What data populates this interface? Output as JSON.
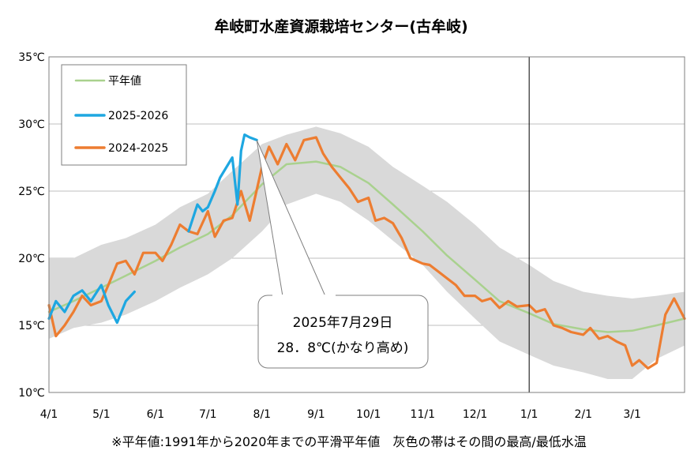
{
  "chart_data": {
    "type": "line",
    "title": "牟岐町水産資源栽培センター(古牟岐)",
    "footnote": "※平年値:1991年から2020年までの平滑平年値　灰色の帯はその間の最高/最低水温",
    "xlabel": "",
    "ylabel": "",
    "x_ticks": [
      "4/1",
      "5/1",
      "6/1",
      "7/1",
      "8/1",
      "9/1",
      "10/1",
      "11/1",
      "12/1",
      "1/1",
      "2/1",
      "3/1"
    ],
    "y_ticks": [
      "10℃",
      "15℃",
      "20℃",
      "25℃",
      "30℃",
      "35℃"
    ],
    "ylim": [
      10,
      35
    ],
    "grid": "horizontal",
    "legend": [
      "平年値",
      "2025-2026",
      "2024-2025"
    ],
    "legend_position": "top-left",
    "colors": {
      "normal": "#a9d18e",
      "current": "#1ea7e1",
      "previous": "#ed7d31",
      "band": "#d9d9d9",
      "frame": "#7f7f7f"
    },
    "annotation": {
      "line1": "2025年7月29日",
      "line2": "28．8℃(かなり高め)"
    },
    "series": [
      {
        "name": "平年値",
        "x": [
          "4/1",
          "4/15",
          "5/1",
          "5/15",
          "6/1",
          "6/15",
          "7/1",
          "7/15",
          "8/1",
          "8/15",
          "9/1",
          "9/15",
          "10/1",
          "10/15",
          "11/1",
          "11/15",
          "12/1",
          "12/15",
          "1/1",
          "1/15",
          "2/1",
          "2/15",
          "3/1",
          "3/15",
          "3/31"
        ],
        "values": [
          16.0,
          16.8,
          17.8,
          18.7,
          19.8,
          20.8,
          21.8,
          23.2,
          25.5,
          27.0,
          27.2,
          26.8,
          25.6,
          24.0,
          22.0,
          20.2,
          18.4,
          16.8,
          15.9,
          15.1,
          14.7,
          14.5,
          14.6,
          15.0,
          15.5
        ]
      },
      {
        "name": "2025-2026",
        "x": [
          "4/1",
          "4/5",
          "4/10",
          "4/15",
          "4/20",
          "4/25",
          "5/1",
          "5/5",
          "5/10",
          "5/15",
          "5/20",
          "6/20",
          "6/25",
          "6/28",
          "7/1",
          "7/5",
          "7/8",
          "7/15",
          "7/18",
          "7/20",
          "7/22",
          "7/25",
          "7/29"
        ],
        "values": [
          15.5,
          16.8,
          16.0,
          17.2,
          17.6,
          16.8,
          18.0,
          16.5,
          15.2,
          16.8,
          17.5,
          22.0,
          24.0,
          23.5,
          23.8,
          25.0,
          26.0,
          27.5,
          24.0,
          28.0,
          29.2,
          29.0,
          28.8
        ]
      },
      {
        "name": "2024-2025",
        "x": [
          "4/1",
          "4/5",
          "4/10",
          "4/15",
          "4/20",
          "4/25",
          "5/1",
          "5/5",
          "5/10",
          "5/15",
          "5/20",
          "5/25",
          "6/1",
          "6/5",
          "6/10",
          "6/15",
          "6/20",
          "6/25",
          "7/1",
          "7/5",
          "7/10",
          "7/15",
          "7/20",
          "7/25",
          "8/1",
          "8/5",
          "8/10",
          "8/15",
          "8/20",
          "8/25",
          "9/1",
          "9/5",
          "9/10",
          "9/15",
          "9/20",
          "9/25",
          "10/1",
          "10/5",
          "10/10",
          "10/15",
          "10/20",
          "10/25",
          "11/1",
          "11/5",
          "11/10",
          "11/15",
          "11/20",
          "11/25",
          "12/1",
          "12/5",
          "12/10",
          "12/15",
          "12/20",
          "12/25",
          "1/1",
          "1/5",
          "1/10",
          "1/15",
          "1/20",
          "1/25",
          "2/1",
          "2/5",
          "2/10",
          "2/15",
          "2/20",
          "2/25",
          "3/1",
          "3/5",
          "3/10",
          "3/15",
          "3/20",
          "3/25",
          "3/31"
        ],
        "values": [
          16.5,
          14.2,
          15.0,
          16.0,
          17.2,
          16.5,
          16.8,
          18.0,
          19.6,
          19.8,
          18.8,
          20.4,
          20.4,
          19.8,
          21.0,
          22.5,
          22.0,
          21.8,
          23.5,
          21.6,
          22.8,
          23.0,
          25.0,
          22.8,
          26.8,
          28.3,
          27.0,
          28.5,
          27.3,
          28.8,
          29.0,
          27.8,
          26.8,
          26.0,
          25.2,
          24.2,
          24.5,
          22.8,
          23.0,
          22.6,
          21.5,
          20.0,
          19.6,
          19.5,
          19.0,
          18.5,
          18.0,
          17.2,
          17.2,
          16.8,
          17.0,
          16.3,
          16.8,
          16.4,
          16.5,
          16.0,
          16.2,
          15.0,
          14.8,
          14.5,
          14.3,
          14.8,
          14.0,
          14.2,
          13.8,
          13.5,
          12.0,
          12.4,
          11.8,
          12.2,
          15.8,
          17.0,
          15.5
        ]
      }
    ],
    "band": {
      "name": "最高/最低",
      "x": [
        "4/1",
        "4/15",
        "5/1",
        "5/15",
        "6/1",
        "6/15",
        "7/1",
        "7/15",
        "8/1",
        "8/15",
        "9/1",
        "9/15",
        "10/1",
        "10/15",
        "11/1",
        "11/15",
        "12/1",
        "12/15",
        "1/1",
        "1/15",
        "2/1",
        "2/15",
        "3/1",
        "3/15",
        "3/31"
      ],
      "high": [
        20.0,
        20.0,
        21.0,
        21.5,
        22.5,
        23.8,
        24.8,
        26.5,
        28.5,
        29.2,
        29.8,
        29.3,
        28.3,
        26.8,
        25.4,
        24.2,
        22.5,
        20.8,
        19.5,
        18.3,
        17.5,
        17.2,
        17.0,
        17.2,
        17.5
      ],
      "low": [
        14.0,
        14.8,
        15.2,
        15.8,
        16.8,
        17.8,
        18.8,
        20.0,
        22.0,
        24.0,
        24.8,
        24.2,
        22.8,
        21.3,
        19.5,
        17.5,
        15.5,
        13.8,
        12.8,
        12.0,
        11.5,
        11.0,
        11.0,
        12.5,
        13.5
      ]
    }
  }
}
